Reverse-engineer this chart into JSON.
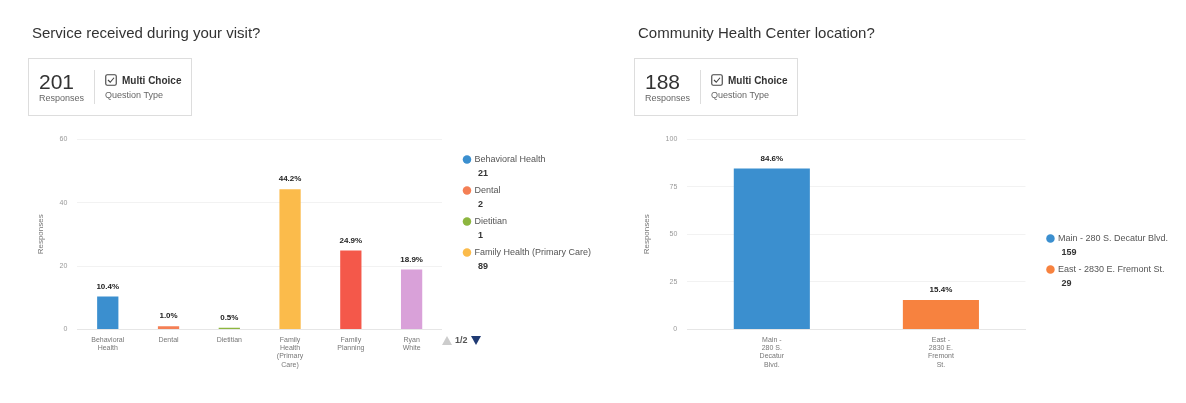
{
  "chart_data": [
    {
      "type": "bar",
      "title": "Service received during your visit?",
      "ylabel": "Responses",
      "categories": [
        "Behavioral Health",
        "Dental",
        "Dietitian",
        "Family Health (Primary Care)",
        "Family Planning",
        "Ryan White"
      ],
      "series": [
        {
          "name": "Behavioral Health",
          "color": "#3b8fcf",
          "values": [
            10.4,
            null,
            null,
            null,
            null,
            null
          ],
          "value_labels": [
            "10.4%",
            null,
            null,
            null,
            null,
            null
          ]
        },
        {
          "name": "Dental",
          "color": "#f47f55",
          "values": [
            null,
            1.0,
            null,
            null,
            null,
            null
          ],
          "value_labels": [
            null,
            "1.0%",
            null,
            null,
            null,
            null
          ]
        },
        {
          "name": "Dietitian",
          "color": "#8db63f",
          "values": [
            null,
            null,
            0.5,
            null,
            null,
            null
          ],
          "value_labels": [
            null,
            null,
            "0.5%",
            null,
            null,
            null
          ]
        },
        {
          "name": "Family Health (Primary Care)",
          "color": "#fbbb4b",
          "values": [
            null,
            null,
            null,
            44.2,
            null,
            null
          ],
          "value_labels": [
            null,
            null,
            null,
            "44.2%",
            null,
            null
          ]
        },
        {
          "color": "#f4584a",
          "values": [
            null,
            null,
            null,
            null,
            24.9,
            null
          ],
          "value_labels": [
            null,
            null,
            null,
            null,
            "24.9%",
            null
          ]
        },
        {
          "color": "#d9a1d9",
          "values": [
            null,
            null,
            null,
            null,
            null,
            18.9
          ],
          "value_labels": [
            null,
            null,
            null,
            null,
            null,
            "18.9%"
          ]
        }
      ],
      "ylim": [
        0,
        60
      ],
      "yticks": [
        0,
        20,
        40,
        60
      ],
      "grid": "y",
      "legend": "right",
      "annotations": [
        "201",
        "Responses",
        "Multi Choice",
        "Question Type",
        "21",
        "2",
        "1",
        "89",
        "1/2"
      ]
    },
    {
      "type": "bar",
      "title": "Community Health Center location?",
      "ylabel": "Responses",
      "categories": [
        "Main - 280 S. Decatur Blvd.",
        "East - 2830 E. Fremont St."
      ],
      "series": [
        {
          "name": "Main - 280 S. Decatur Blvd.",
          "color": "#3b8fcf",
          "values": [
            84.6,
            null
          ],
          "value_labels": [
            "84.6%",
            null
          ]
        },
        {
          "name": "East - 2830 E. Fremont St.",
          "color": "#f7823f",
          "values": [
            null,
            15.4
          ],
          "value_labels": [
            null,
            "15.4%"
          ]
        }
      ],
      "ylim": [
        0,
        100
      ],
      "yticks": [
        0,
        25,
        50,
        75,
        100
      ],
      "grid": "y",
      "legend": "right",
      "annotations": [
        "188",
        "Responses",
        "Multi Choice",
        "Question Type",
        "159",
        "29"
      ]
    }
  ]
}
